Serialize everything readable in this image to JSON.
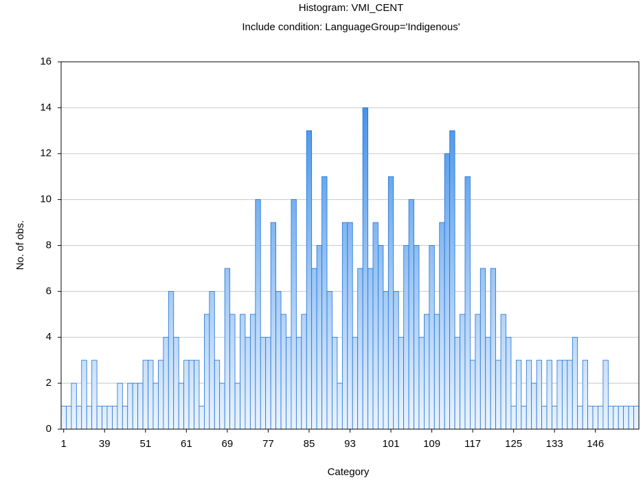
{
  "chart_data": {
    "type": "bar",
    "title": "Histogram: VMI_CENT",
    "subtitle": "Include condition: LanguageGroup='Indigenous'",
    "x_label": "Category",
    "y_label": "No. of obs.",
    "color": "#2f86e8",
    "categories": [
      "1",
      null,
      null,
      null,
      null,
      null,
      null,
      null,
      "39",
      null,
      null,
      null,
      null,
      null,
      null,
      null,
      "51",
      null,
      null,
      null,
      null,
      null,
      null,
      null,
      "61",
      null,
      null,
      null,
      null,
      null,
      null,
      null,
      "69",
      null,
      null,
      null,
      null,
      null,
      null,
      null,
      "77",
      null,
      null,
      null,
      null,
      null,
      null,
      null,
      "85",
      null,
      null,
      null,
      null,
      null,
      null,
      null,
      "93",
      null,
      null,
      null,
      null,
      null,
      null,
      null,
      "101",
      null,
      null,
      null,
      null,
      null,
      null,
      null,
      "109",
      null,
      null,
      null,
      null,
      null,
      null,
      null,
      "117",
      null,
      null,
      null,
      null,
      null,
      null,
      null,
      "125",
      null,
      null,
      null,
      null,
      null,
      null,
      null,
      "133",
      null,
      null,
      null,
      null,
      null,
      null,
      null,
      "146",
      null,
      null,
      null,
      null,
      null,
      null,
      null,
      null
    ],
    "values": [
      1,
      1,
      2,
      1,
      3,
      1,
      3,
      1,
      1,
      1,
      1,
      2,
      1,
      2,
      2,
      2,
      3,
      3,
      2,
      3,
      4,
      6,
      4,
      2,
      3,
      3,
      3,
      1,
      5,
      6,
      3,
      2,
      7,
      5,
      2,
      5,
      4,
      5,
      10,
      4,
      4,
      9,
      6,
      5,
      4,
      10,
      4,
      5,
      13,
      7,
      8,
      11,
      6,
      4,
      2,
      9,
      9,
      4,
      7,
      14,
      7,
      9,
      8,
      6,
      11,
      6,
      4,
      8,
      10,
      8,
      4,
      5,
      8,
      5,
      9,
      12,
      13,
      4,
      5,
      11,
      3,
      5,
      7,
      4,
      7,
      3,
      5,
      4,
      1,
      3,
      1,
      3,
      2,
      3,
      1,
      3,
      1,
      3,
      3,
      3,
      4,
      1,
      3,
      1,
      1,
      1,
      3,
      1,
      1,
      1,
      1,
      1,
      1
    ],
    "ylim": [
      0,
      16
    ],
    "yticks": [
      0,
      2,
      4,
      6,
      8,
      10,
      12,
      14,
      16
    ],
    "grid": true
  }
}
